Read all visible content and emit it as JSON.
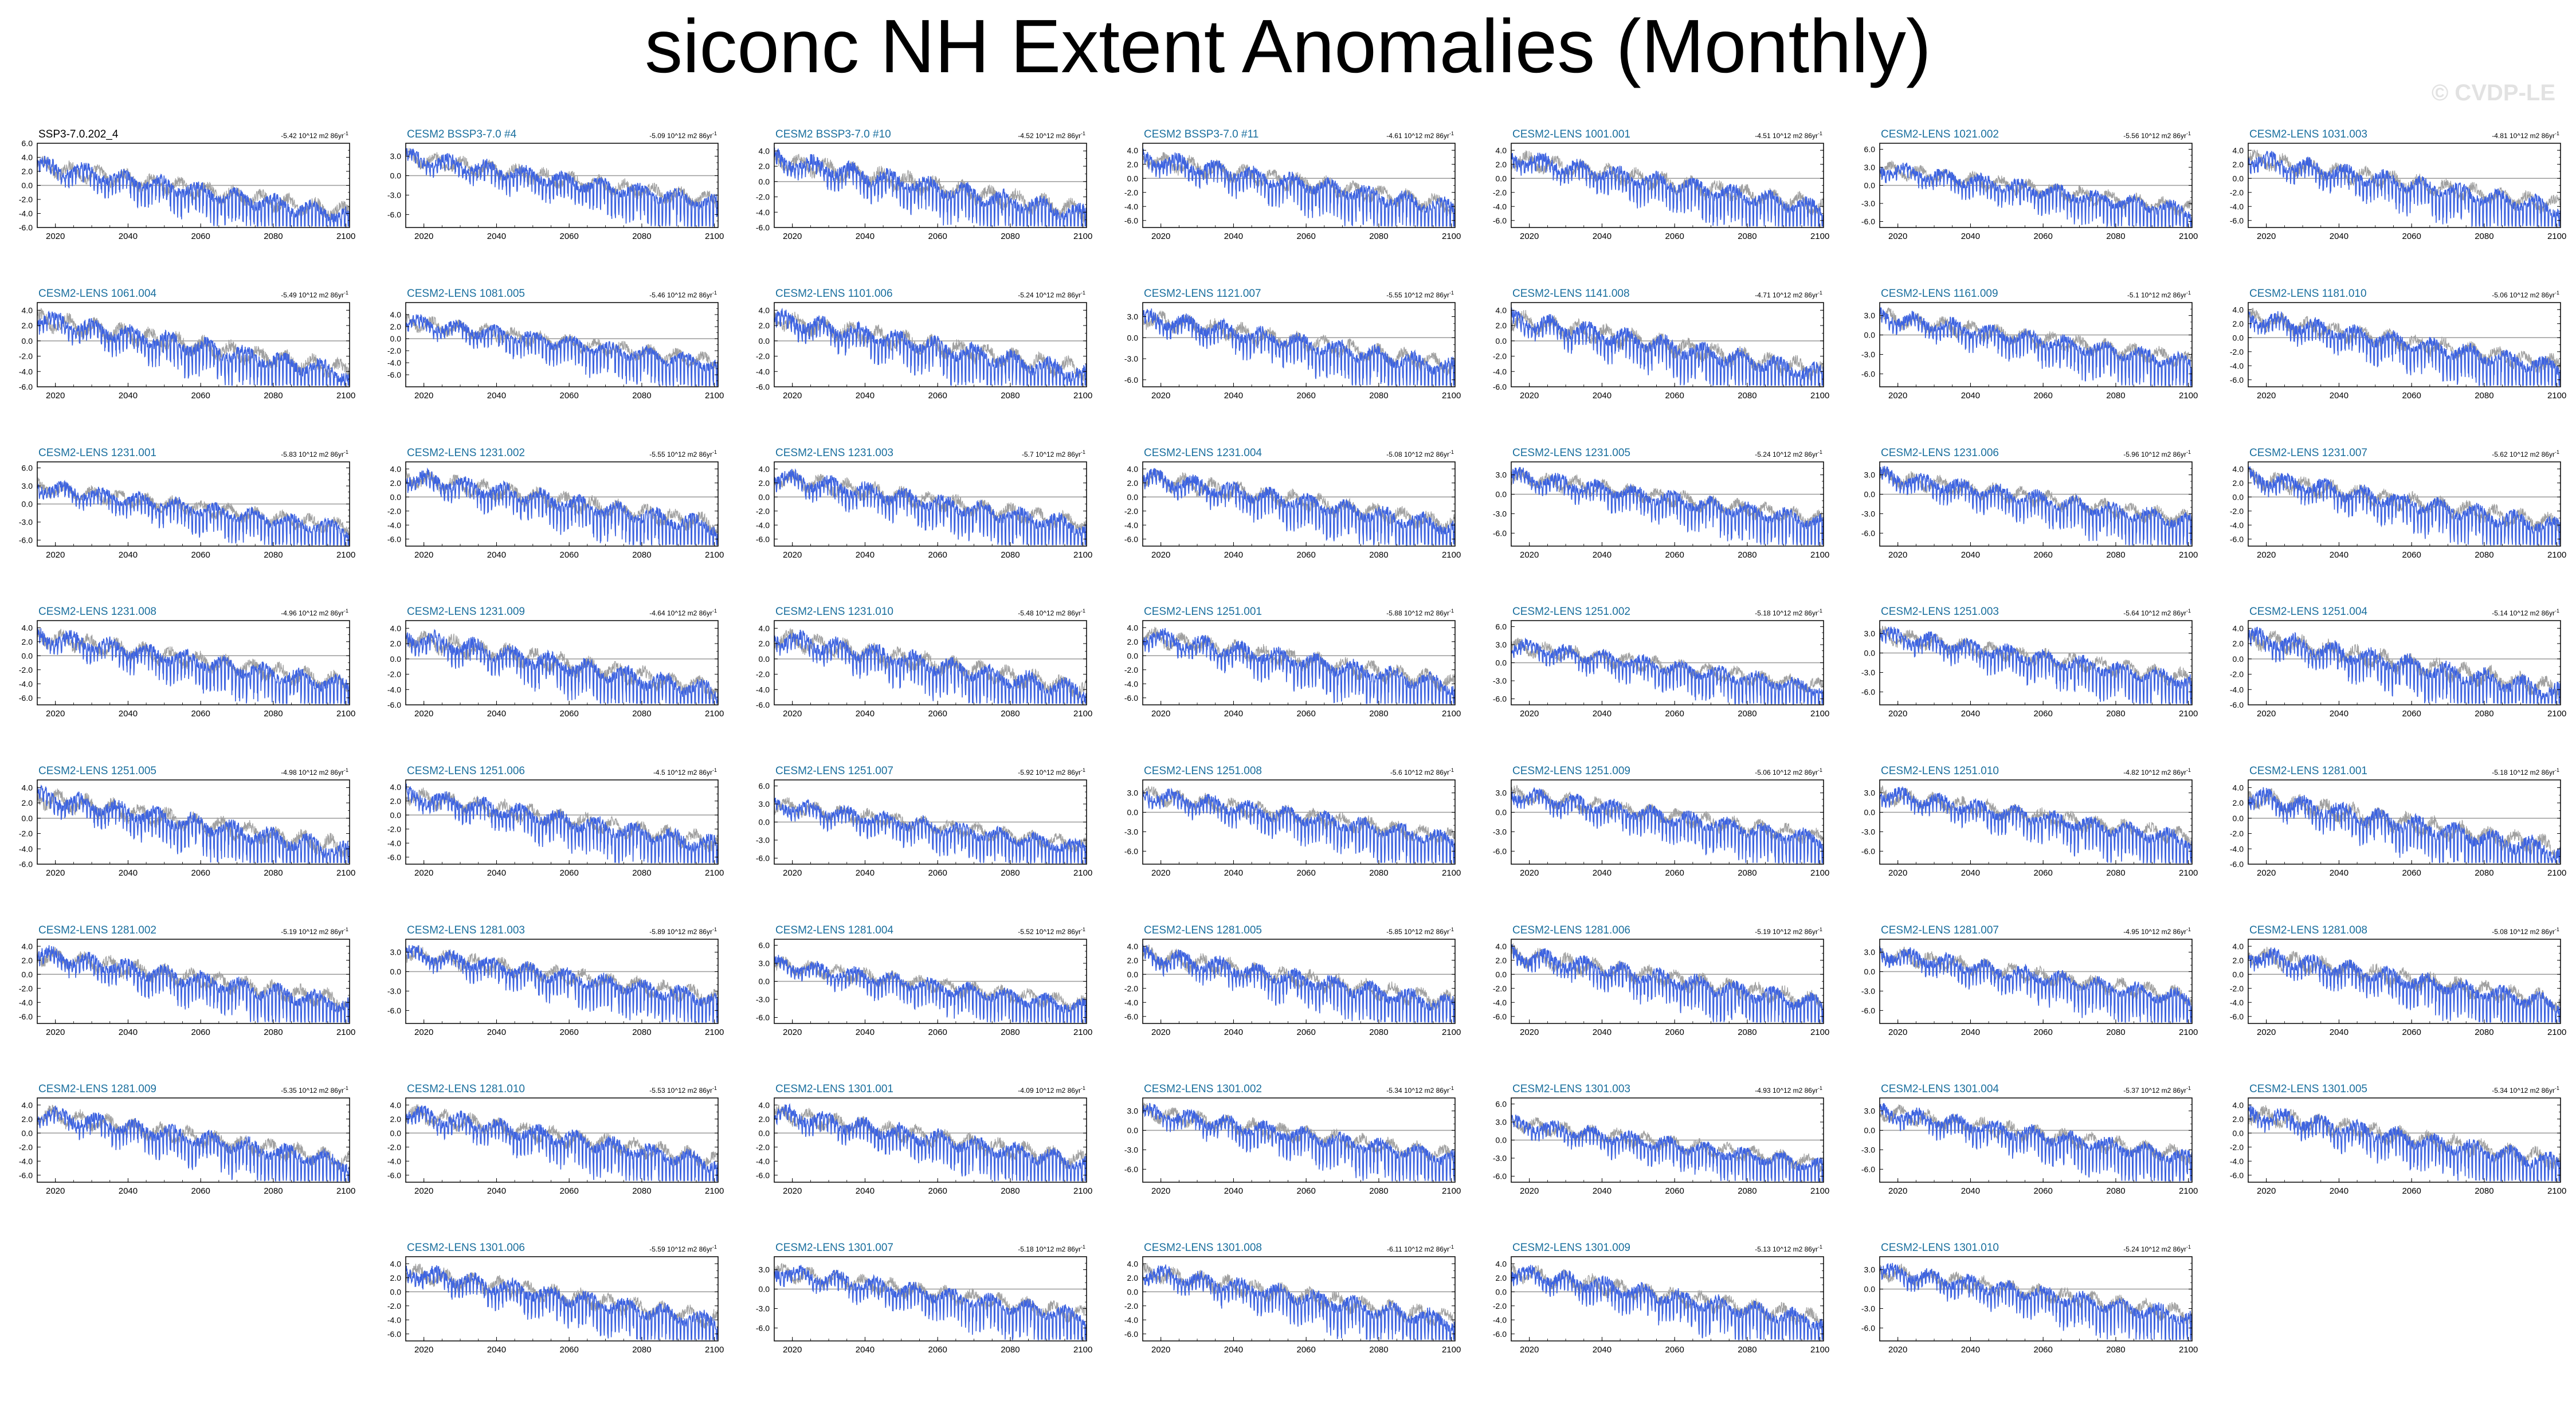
{
  "title": "siconc NH Extent Anomalies (Monthly)",
  "watermark": "© CVDP-LE",
  "trend_unit": "10^12 m2 86yr",
  "trend_unit_sup": "-1",
  "colors": {
    "member_line": "#3d63e0",
    "ensemble_mean": "#a0a0a0",
    "observation": "#3d63e0",
    "member_title": "#1a6f9e",
    "observation_title": "#000000",
    "zero_line": "#9a9a9a"
  },
  "chart_data": {
    "type": "line",
    "xlabel": "",
    "ylabel": "",
    "xlim": [
      2015,
      2101
    ],
    "x_ticks": [
      2020,
      2040,
      2060,
      2080,
      2100
    ],
    "series_style": "monthly anomaly time series (blue) over ensemble mean (gray), zero reference line",
    "panels": [
      {
        "name": "SSP3-7.0.202_4",
        "trend": "-5.42",
        "ylim": [
          -6,
          6
        ],
        "yticks": [
          "6.0",
          "4.0",
          "2.0",
          "0.0",
          "-2.0",
          "-4.0",
          "-6.0"
        ],
        "obs": true
      },
      {
        "name": "CESM2 BSSP3-7.0 #4",
        "trend": "-5.09",
        "ylim": [
          -8,
          5
        ],
        "yticks": [
          "3.0",
          "0.0",
          "-3.0",
          "-6.0"
        ]
      },
      {
        "name": "CESM2 BSSP3-7.0 #10",
        "trend": "-4.52",
        "ylim": [
          -6,
          5
        ],
        "yticks": [
          "4.0",
          "2.0",
          "0.0",
          "-2.0",
          "-4.0",
          "-6.0"
        ]
      },
      {
        "name": "CESM2 BSSP3-7.0 #11",
        "trend": "-4.61",
        "ylim": [
          -7,
          5
        ],
        "yticks": [
          "4.0",
          "2.0",
          "0.0",
          "-2.0",
          "-4.0",
          "-6.0"
        ]
      },
      {
        "name": "CESM2-LENS 1001.001",
        "trend": "-4.51",
        "ylim": [
          -7,
          5
        ],
        "yticks": [
          "4.0",
          "2.0",
          "0.0",
          "-2.0",
          "-4.0",
          "-6.0"
        ]
      },
      {
        "name": "CESM2-LENS 1021.002",
        "trend": "-5.56",
        "ylim": [
          -7,
          7
        ],
        "yticks": [
          "6.0",
          "3.0",
          "0.0",
          "-3.0",
          "-6.0"
        ]
      },
      {
        "name": "CESM2-LENS 1031.003",
        "trend": "-4.81",
        "ylim": [
          -7,
          5
        ],
        "yticks": [
          "4.0",
          "2.0",
          "0.0",
          "-2.0",
          "-4.0",
          "-6.0"
        ]
      },
      {
        "name": "CESM2-LENS 1061.004",
        "trend": "-5.49",
        "ylim": [
          -6,
          5
        ],
        "yticks": [
          "4.0",
          "2.0",
          "0.0",
          "-2.0",
          "-4.0",
          "-6.0"
        ]
      },
      {
        "name": "CESM2-LENS 1081.005",
        "trend": "-5.46",
        "ylim": [
          -8,
          6
        ],
        "yticks": [
          "4.0",
          "2.0",
          "0.0",
          "-2.0",
          "-4.0",
          "-6.0"
        ]
      },
      {
        "name": "CESM2-LENS 1101.006",
        "trend": "-5.24",
        "ylim": [
          -6,
          5
        ],
        "yticks": [
          "4.0",
          "2.0",
          "0.0",
          "-2.0",
          "-4.0",
          "-6.0"
        ]
      },
      {
        "name": "CESM2-LENS 1121.007",
        "trend": "-5.55",
        "ylim": [
          -7,
          5
        ],
        "yticks": [
          "3.0",
          "0.0",
          "-3.0",
          "-6.0"
        ]
      },
      {
        "name": "CESM2-LENS 1141.008",
        "trend": "-4.71",
        "ylim": [
          -6,
          5
        ],
        "yticks": [
          "4.0",
          "2.0",
          "0.0",
          "-2.0",
          "-4.0",
          "-6.0"
        ]
      },
      {
        "name": "CESM2-LENS 1161.009",
        "trend": "-5.1",
        "ylim": [
          -8,
          5
        ],
        "yticks": [
          "3.0",
          "0.0",
          "-3.0",
          "-6.0"
        ]
      },
      {
        "name": "CESM2-LENS 1181.010",
        "trend": "-5.06",
        "ylim": [
          -7,
          5
        ],
        "yticks": [
          "4.0",
          "2.0",
          "0.0",
          "-2.0",
          "-4.0",
          "-6.0"
        ]
      },
      {
        "name": "CESM2-LENS 1231.001",
        "trend": "-5.83",
        "ylim": [
          -7,
          7
        ],
        "yticks": [
          "6.0",
          "3.0",
          "0.0",
          "-3.0",
          "-6.0"
        ]
      },
      {
        "name": "CESM2-LENS 1231.002",
        "trend": "-5.55",
        "ylim": [
          -7,
          5
        ],
        "yticks": [
          "4.0",
          "2.0",
          "0.0",
          "-2.0",
          "-4.0",
          "-6.0"
        ]
      },
      {
        "name": "CESM2-LENS 1231.003",
        "trend": "-5.7",
        "ylim": [
          -7,
          5
        ],
        "yticks": [
          "4.0",
          "2.0",
          "0.0",
          "-2.0",
          "-4.0",
          "-6.0"
        ]
      },
      {
        "name": "CESM2-LENS 1231.004",
        "trend": "-5.08",
        "ylim": [
          -7,
          5
        ],
        "yticks": [
          "4.0",
          "2.0",
          "0.0",
          "-2.0",
          "-4.0",
          "-6.0"
        ]
      },
      {
        "name": "CESM2-LENS 1231.005",
        "trend": "-5.24",
        "ylim": [
          -8,
          5
        ],
        "yticks": [
          "3.0",
          "0.0",
          "-3.0",
          "-6.0"
        ]
      },
      {
        "name": "CESM2-LENS 1231.006",
        "trend": "-5.96",
        "ylim": [
          -8,
          5
        ],
        "yticks": [
          "3.0",
          "0.0",
          "-3.0",
          "-6.0"
        ]
      },
      {
        "name": "CESM2-LENS 1231.007",
        "trend": "-5.62",
        "ylim": [
          -7,
          5
        ],
        "yticks": [
          "4.0",
          "2.0",
          "0.0",
          "-2.0",
          "-4.0",
          "-6.0"
        ]
      },
      {
        "name": "CESM2-LENS 1231.008",
        "trend": "-4.96",
        "ylim": [
          -7,
          5
        ],
        "yticks": [
          "4.0",
          "2.0",
          "0.0",
          "-2.0",
          "-4.0",
          "-6.0"
        ]
      },
      {
        "name": "CESM2-LENS 1231.009",
        "trend": "-4.64",
        "ylim": [
          -6,
          5
        ],
        "yticks": [
          "4.0",
          "2.0",
          "0.0",
          "-2.0",
          "-4.0",
          "-6.0"
        ]
      },
      {
        "name": "CESM2-LENS 1231.010",
        "trend": "-5.48",
        "ylim": [
          -6,
          5
        ],
        "yticks": [
          "4.0",
          "2.0",
          "0.0",
          "-2.0",
          "-4.0",
          "-6.0"
        ]
      },
      {
        "name": "CESM2-LENS 1251.001",
        "trend": "-5.88",
        "ylim": [
          -7,
          5
        ],
        "yticks": [
          "4.0",
          "2.0",
          "0.0",
          "-2.0",
          "-4.0",
          "-6.0"
        ]
      },
      {
        "name": "CESM2-LENS 1251.002",
        "trend": "-5.18",
        "ylim": [
          -7,
          7
        ],
        "yticks": [
          "6.0",
          "3.0",
          "0.0",
          "-3.0",
          "-6.0"
        ]
      },
      {
        "name": "CESM2-LENS 1251.003",
        "trend": "-5.64",
        "ylim": [
          -8,
          5
        ],
        "yticks": [
          "3.0",
          "0.0",
          "-3.0",
          "-6.0"
        ]
      },
      {
        "name": "CESM2-LENS 1251.004",
        "trend": "-5.14",
        "ylim": [
          -6,
          5
        ],
        "yticks": [
          "4.0",
          "2.0",
          "0.0",
          "-2.0",
          "-4.0",
          "-6.0"
        ]
      },
      {
        "name": "CESM2-LENS 1251.005",
        "trend": "-4.98",
        "ylim": [
          -6,
          5
        ],
        "yticks": [
          "4.0",
          "2.0",
          "0.0",
          "-2.0",
          "-4.0",
          "-6.0"
        ]
      },
      {
        "name": "CESM2-LENS 1251.006",
        "trend": "-4.5",
        "ylim": [
          -7,
          5
        ],
        "yticks": [
          "4.0",
          "2.0",
          "0.0",
          "-2.0",
          "-4.0",
          "-6.0"
        ]
      },
      {
        "name": "CESM2-LENS 1251.007",
        "trend": "-5.92",
        "ylim": [
          -7,
          7
        ],
        "yticks": [
          "6.0",
          "3.0",
          "0.0",
          "-3.0",
          "-6.0"
        ]
      },
      {
        "name": "CESM2-LENS 1251.008",
        "trend": "-5.6",
        "ylim": [
          -8,
          5
        ],
        "yticks": [
          "3.0",
          "0.0",
          "-3.0",
          "-6.0"
        ]
      },
      {
        "name": "CESM2-LENS 1251.009",
        "trend": "-5.06",
        "ylim": [
          -8,
          5
        ],
        "yticks": [
          "3.0",
          "0.0",
          "-3.0",
          "-6.0"
        ]
      },
      {
        "name": "CESM2-LENS 1251.010",
        "trend": "-4.82",
        "ylim": [
          -8,
          5
        ],
        "yticks": [
          "3.0",
          "0.0",
          "-3.0",
          "-6.0"
        ]
      },
      {
        "name": "CESM2-LENS 1281.001",
        "trend": "-5.18",
        "ylim": [
          -6,
          5
        ],
        "yticks": [
          "4.0",
          "2.0",
          "0.0",
          "-2.0",
          "-4.0",
          "-6.0"
        ]
      },
      {
        "name": "CESM2-LENS 1281.002",
        "trend": "-5.19",
        "ylim": [
          -7,
          5
        ],
        "yticks": [
          "4.0",
          "2.0",
          "0.0",
          "-2.0",
          "-4.0",
          "-6.0"
        ]
      },
      {
        "name": "CESM2-LENS 1281.003",
        "trend": "-5.89",
        "ylim": [
          -8,
          5
        ],
        "yticks": [
          "3.0",
          "0.0",
          "-3.0",
          "-6.0"
        ]
      },
      {
        "name": "CESM2-LENS 1281.004",
        "trend": "-5.52",
        "ylim": [
          -7,
          7
        ],
        "yticks": [
          "6.0",
          "3.0",
          "0.0",
          "-3.0",
          "-6.0"
        ]
      },
      {
        "name": "CESM2-LENS 1281.005",
        "trend": "-5.85",
        "ylim": [
          -7,
          5
        ],
        "yticks": [
          "4.0",
          "2.0",
          "0.0",
          "-2.0",
          "-4.0",
          "-6.0"
        ]
      },
      {
        "name": "CESM2-LENS 1281.006",
        "trend": "-5.19",
        "ylim": [
          -7,
          5
        ],
        "yticks": [
          "4.0",
          "2.0",
          "0.0",
          "-2.0",
          "-4.0",
          "-6.0"
        ]
      },
      {
        "name": "CESM2-LENS 1281.007",
        "trend": "-4.95",
        "ylim": [
          -8,
          5
        ],
        "yticks": [
          "3.0",
          "0.0",
          "-3.0",
          "-6.0"
        ]
      },
      {
        "name": "CESM2-LENS 1281.008",
        "trend": "-5.08",
        "ylim": [
          -7,
          5
        ],
        "yticks": [
          "4.0",
          "2.0",
          "0.0",
          "-2.0",
          "-4.0",
          "-6.0"
        ]
      },
      {
        "name": "CESM2-LENS 1281.009",
        "trend": "-5.35",
        "ylim": [
          -7,
          5
        ],
        "yticks": [
          "4.0",
          "2.0",
          "0.0",
          "-2.0",
          "-4.0",
          "-6.0"
        ]
      },
      {
        "name": "CESM2-LENS 1281.010",
        "trend": "-5.53",
        "ylim": [
          -7,
          5
        ],
        "yticks": [
          "4.0",
          "2.0",
          "0.0",
          "-2.0",
          "-4.0",
          "-6.0"
        ]
      },
      {
        "name": "CESM2-LENS 1301.001",
        "trend": "-4.09",
        "ylim": [
          -7,
          5
        ],
        "yticks": [
          "4.0",
          "2.0",
          "0.0",
          "-2.0",
          "-4.0",
          "-6.0"
        ]
      },
      {
        "name": "CESM2-LENS 1301.002",
        "trend": "-5.34",
        "ylim": [
          -8,
          5
        ],
        "yticks": [
          "3.0",
          "0.0",
          "-3.0",
          "-6.0"
        ]
      },
      {
        "name": "CESM2-LENS 1301.003",
        "trend": "-4.93",
        "ylim": [
          -7,
          7
        ],
        "yticks": [
          "6.0",
          "3.0",
          "0.0",
          "-3.0",
          "-6.0"
        ]
      },
      {
        "name": "CESM2-LENS 1301.004",
        "trend": "-5.37",
        "ylim": [
          -8,
          5
        ],
        "yticks": [
          "3.0",
          "0.0",
          "-3.0",
          "-6.0"
        ]
      },
      {
        "name": "CESM2-LENS 1301.005",
        "trend": "-5.34",
        "ylim": [
          -7,
          5
        ],
        "yticks": [
          "4.0",
          "2.0",
          "0.0",
          "-2.0",
          "-4.0",
          "-6.0"
        ]
      },
      {
        "name": "CESM2-LENS 1301.006",
        "trend": "-5.59",
        "ylim": [
          -7,
          5
        ],
        "yticks": [
          "4.0",
          "2.0",
          "0.0",
          "-2.0",
          "-4.0",
          "-6.0"
        ]
      },
      {
        "name": "CESM2-LENS 1301.007",
        "trend": "-5.18",
        "ylim": [
          -8,
          5
        ],
        "yticks": [
          "3.0",
          "0.0",
          "-3.0",
          "-6.0"
        ]
      },
      {
        "name": "CESM2-LENS 1301.008",
        "trend": "-6.11",
        "ylim": [
          -7,
          5
        ],
        "yticks": [
          "4.0",
          "2.0",
          "0.0",
          "-2.0",
          "-4.0",
          "-6.0"
        ]
      },
      {
        "name": "CESM2-LENS 1301.009",
        "trend": "-5.13",
        "ylim": [
          -7,
          5
        ],
        "yticks": [
          "4.0",
          "2.0",
          "0.0",
          "-2.0",
          "-4.0",
          "-6.0"
        ]
      },
      {
        "name": "CESM2-LENS 1301.010",
        "trend": "-5.24",
        "ylim": [
          -8,
          5
        ],
        "yticks": [
          "3.0",
          "0.0",
          "-3.0",
          "-6.0"
        ]
      }
    ]
  }
}
